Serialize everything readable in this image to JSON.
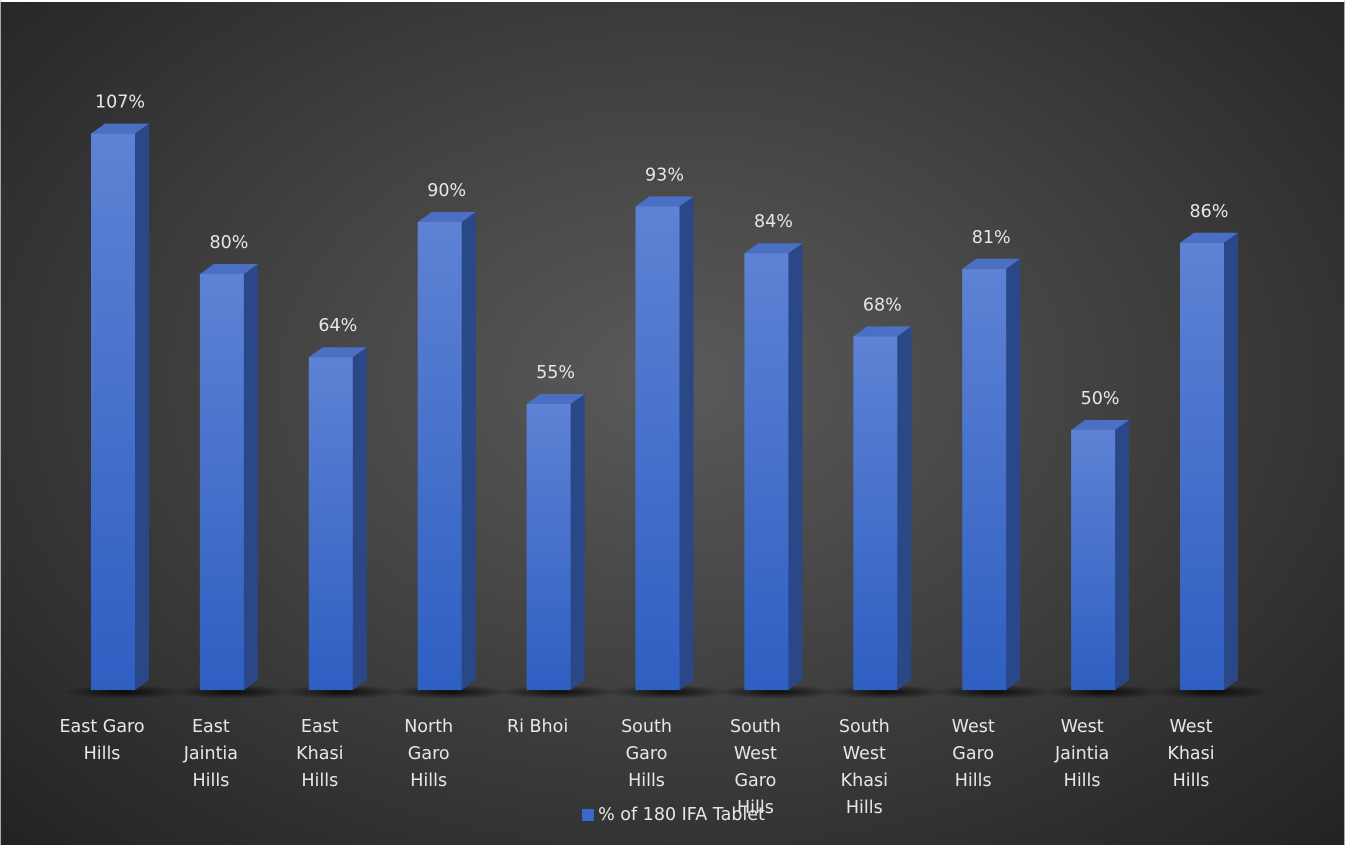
{
  "chart_data": {
    "type": "bar3d",
    "categories": [
      "East Garo Hills",
      "East Jaintia Hills",
      "East Khasi Hills",
      "North Garo Hills",
      "Ri Bhoi",
      "South Garo Hills",
      "South West Garo Hills",
      "South West Khasi Hills",
      "West Garo Hills",
      "West Jaintia Hills",
      "West Khasi Hills"
    ],
    "series": [
      {
        "name": "% of 180 IFA Tablet",
        "color": "#3a67c9",
        "values": [
          107,
          80,
          64,
          90,
          55,
          93,
          84,
          68,
          81,
          50,
          86
        ],
        "value_labels": [
          "107%",
          "80%",
          "64%",
          "90%",
          "55%",
          "93%",
          "84%",
          "68%",
          "81%",
          "50%",
          "86%"
        ]
      }
    ]
  }
}
